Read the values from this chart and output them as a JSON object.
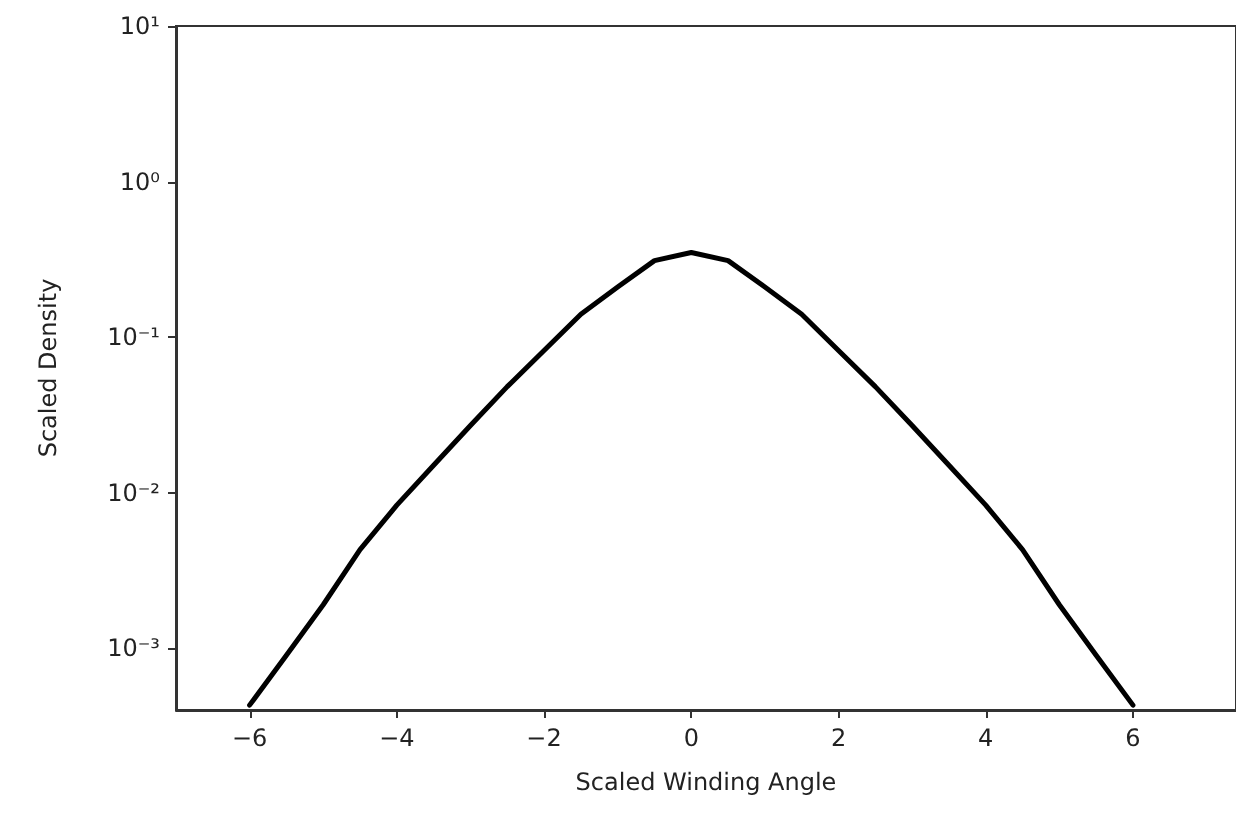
{
  "chart_data": {
    "type": "line",
    "xlabel": "Scaled Winding Angle",
    "ylabel": "Scaled Density",
    "log": "y",
    "grid": false,
    "marker": "none",
    "line_style": "solid",
    "x": [
      -6,
      -5.5,
      -5,
      -4.5,
      -4,
      -3.5,
      -3,
      -2.5,
      -2,
      -1.5,
      -1,
      -0.5,
      0,
      0.5,
      1,
      1.5,
      2,
      2.5,
      3,
      3.5,
      4,
      4.5,
      5,
      5.5,
      6
    ],
    "series": [
      {
        "color": "#000000",
        "values": [
          0.00043,
          0.0009,
          0.0019,
          0.0043,
          0.0083,
          0.015,
          0.027,
          0.048,
          0.082,
          0.14,
          0.21,
          0.31,
          0.35,
          0.31,
          0.21,
          0.14,
          0.082,
          0.048,
          0.027,
          0.015,
          0.0083,
          0.0043,
          0.0019,
          0.0009,
          0.00043
        ]
      }
    ],
    "xlim": [
      -7,
      7.4
    ],
    "xticks": [
      {
        "value": -6,
        "label": "−6"
      },
      {
        "value": -4,
        "label": "−4"
      },
      {
        "value": -2,
        "label": "−2"
      },
      0,
      2,
      4,
      6
    ],
    "ylim": [
      0.0004,
      10
    ],
    "yticks": [
      {
        "value": 0.001,
        "label": "10⁻³"
      },
      {
        "value": 0.01,
        "label": "10⁻²"
      },
      {
        "value": 0.1,
        "label": "10⁻¹"
      },
      {
        "value": 1,
        "label": "10⁰"
      },
      {
        "value": 10,
        "label": "10¹"
      }
    ]
  }
}
